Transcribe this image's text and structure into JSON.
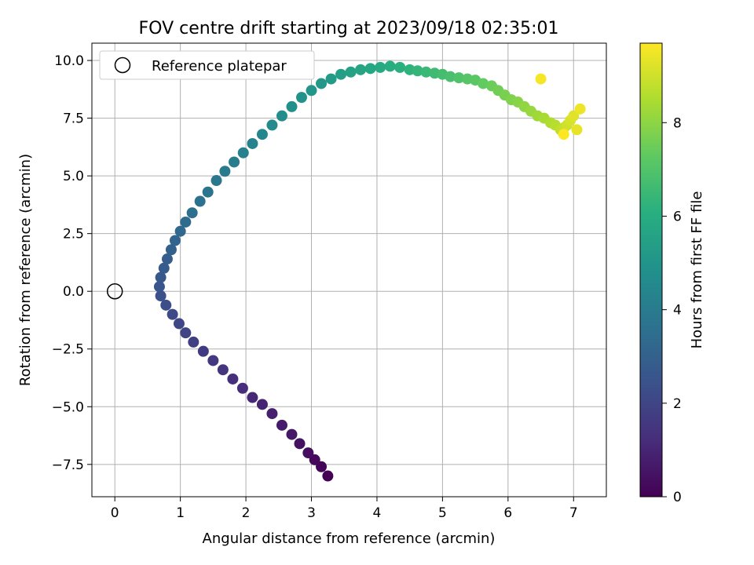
{
  "chart_data": {
    "type": "scatter",
    "title": "FOV centre drift starting at 2023/09/18 02:35:01",
    "xlabel": "Angular distance from reference (arcmin)",
    "ylabel": "Rotation from reference (arcmin)",
    "xlim": [
      -0.35,
      7.5
    ],
    "ylim": [
      -8.9,
      10.75
    ],
    "xticks": [
      0,
      1,
      2,
      3,
      4,
      5,
      6,
      7
    ],
    "xtick_labels": [
      "0",
      "1",
      "2",
      "3",
      "4",
      "5",
      "6",
      "7"
    ],
    "yticks": [
      -7.5,
      -5.0,
      -2.5,
      0.0,
      2.5,
      5.0,
      7.5,
      10.0
    ],
    "ytick_labels": [
      "−7.5",
      "−5.0",
      "−2.5",
      "0.0",
      "2.5",
      "5.0",
      "7.5",
      "10.0"
    ],
    "grid": true,
    "colormap": "viridis",
    "colorbar": {
      "label": "Hours from first FF file",
      "range": [
        0,
        9.7
      ],
      "ticks": [
        0,
        2,
        4,
        6,
        8
      ],
      "tick_labels": [
        "0",
        "2",
        "4",
        "6",
        "8"
      ]
    },
    "legend": {
      "placement": "top-left",
      "entries": [
        "Reference platepar"
      ]
    },
    "reference_point": {
      "x": 0,
      "y": 0,
      "label": "Reference platepar"
    },
    "series": [
      {
        "hours": [
          0.0,
          0.12,
          0.24,
          0.36,
          0.48,
          0.6,
          0.72,
          0.84,
          0.96,
          1.08,
          1.2,
          1.32,
          1.44,
          1.56,
          1.68,
          1.8,
          1.92,
          2.04,
          2.16,
          2.28,
          2.4,
          2.52,
          2.64,
          2.76,
          2.88,
          3.0,
          3.12,
          3.24,
          3.36,
          3.48,
          3.6,
          3.72,
          3.84,
          3.96,
          4.08,
          4.2,
          4.32,
          4.44,
          4.56,
          4.68,
          4.8,
          4.92,
          5.04,
          5.16,
          5.28,
          5.4,
          5.52,
          5.64,
          5.76,
          5.88,
          6.0,
          6.12,
          6.24,
          6.36,
          6.48,
          6.6,
          6.72,
          6.84,
          6.96,
          7.08,
          7.2,
          7.32,
          7.44,
          7.56,
          7.68,
          7.8,
          7.92,
          8.04,
          8.16,
          8.28,
          8.4,
          8.52,
          8.64,
          8.76,
          8.88,
          9.0,
          9.12,
          9.24,
          9.36,
          9.48,
          9.6,
          9.68
        ],
        "x": [
          3.25,
          3.15,
          3.05,
          2.95,
          2.82,
          2.7,
          2.55,
          2.4,
          2.25,
          2.1,
          1.95,
          1.8,
          1.65,
          1.5,
          1.35,
          1.2,
          1.08,
          0.98,
          0.88,
          0.78,
          0.7,
          0.68,
          0.7,
          0.75,
          0.8,
          0.86,
          0.92,
          1.0,
          1.08,
          1.18,
          1.3,
          1.42,
          1.55,
          1.68,
          1.82,
          1.96,
          2.1,
          2.25,
          2.4,
          2.55,
          2.7,
          2.85,
          3.0,
          3.15,
          3.3,
          3.45,
          3.6,
          3.75,
          3.9,
          4.05,
          4.2,
          4.35,
          4.5,
          4.62,
          4.75,
          4.88,
          5.0,
          5.12,
          5.25,
          5.38,
          5.5,
          5.62,
          5.75,
          5.85,
          5.95,
          6.05,
          6.15,
          6.25,
          6.35,
          6.45,
          6.55,
          6.65,
          6.72,
          6.8,
          6.86,
          6.9,
          6.95,
          7.0,
          7.05,
          7.1,
          6.5,
          6.85
        ],
        "y": [
          -8.0,
          -7.6,
          -7.3,
          -7.0,
          -6.6,
          -6.2,
          -5.8,
          -5.3,
          -4.9,
          -4.6,
          -4.2,
          -3.8,
          -3.4,
          -3.0,
          -2.6,
          -2.2,
          -1.8,
          -1.4,
          -1.0,
          -0.6,
          -0.2,
          0.2,
          0.6,
          1.0,
          1.4,
          1.8,
          2.2,
          2.6,
          3.0,
          3.4,
          3.9,
          4.3,
          4.8,
          5.2,
          5.6,
          6.0,
          6.4,
          6.8,
          7.2,
          7.6,
          8.0,
          8.4,
          8.7,
          9.0,
          9.2,
          9.4,
          9.5,
          9.6,
          9.65,
          9.7,
          9.75,
          9.7,
          9.6,
          9.55,
          9.5,
          9.45,
          9.4,
          9.3,
          9.25,
          9.2,
          9.15,
          9.0,
          8.9,
          8.7,
          8.5,
          8.3,
          8.2,
          8.0,
          7.8,
          7.6,
          7.5,
          7.3,
          7.2,
          7.0,
          7.1,
          7.2,
          7.4,
          7.6,
          7.0,
          7.9,
          9.2,
          6.8
        ]
      }
    ]
  }
}
